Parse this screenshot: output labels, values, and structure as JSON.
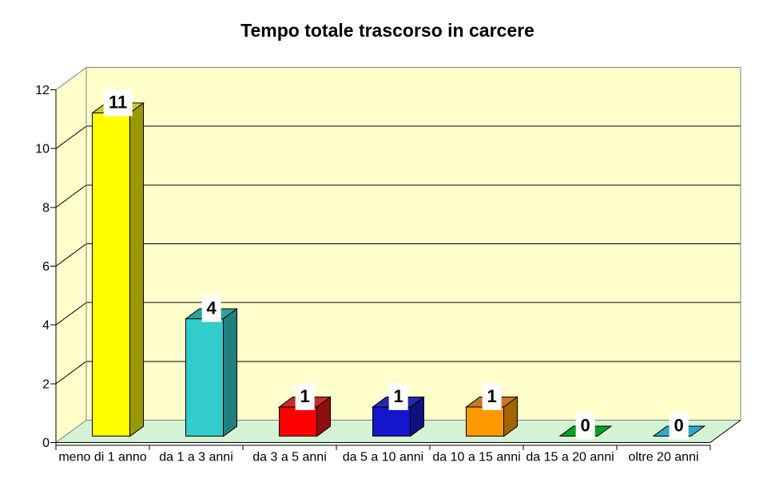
{
  "chart_data": {
    "type": "bar",
    "projection": "3d-column",
    "title": "Tempo totale trascorso in carcere",
    "categories": [
      "meno di 1 anno",
      "da 1 a 3 anni",
      "da 3 a 5 anni",
      "da 5 a 10 anni",
      "da 10 a 15 anni",
      "da 15 a 20 anni",
      "oltre 20 anni"
    ],
    "values": [
      11,
      4,
      1,
      1,
      1,
      0,
      0
    ],
    "data_labels": [
      "11",
      "4",
      "1",
      "1",
      "1",
      "0",
      "0"
    ],
    "xlabel": "",
    "ylabel": "",
    "y_ticks": [
      0,
      2,
      4,
      6,
      8,
      10,
      12
    ],
    "ylim": [
      0,
      12
    ],
    "grid": true,
    "legend_position": "none",
    "bar_styles": [
      {
        "category": "meno di 1 anno",
        "front": "#FFFF00",
        "side": "#9A9A00",
        "top": "#C8C832"
      },
      {
        "category": "da 1 a 3 anni",
        "front": "#33CCCC",
        "side": "#237F7F",
        "top": "#2FA0A0"
      },
      {
        "category": "da 3 a 5 anni",
        "front": "#FF0000",
        "side": "#8F0F0F",
        "top": "#C03030"
      },
      {
        "category": "da 5 a 10 anni",
        "front": "#1515CC",
        "side": "#101080",
        "top": "#2828A8"
      },
      {
        "category": "da 10 a 15 anni",
        "front": "#FF9900",
        "side": "#A56400",
        "top": "#C87828"
      },
      {
        "category": "da 15 a 20 anni",
        "front": "#00A428",
        "side": "#00A428",
        "top": "#00A428"
      },
      {
        "category": "oltre 20 anni",
        "front": "#2FA9C9",
        "side": "#2FA9C9",
        "top": "#2FA9C9"
      }
    ],
    "colors": {
      "background": "#FFFFFF",
      "wall": "#FFFFCC",
      "floor": "#D4F2D4",
      "wall_edge": "#808080",
      "gridline": "#000000",
      "axis": "#000000",
      "text": "#000000",
      "data_label_bg": "#FFFFFF",
      "data_label_text": "#000000"
    }
  }
}
